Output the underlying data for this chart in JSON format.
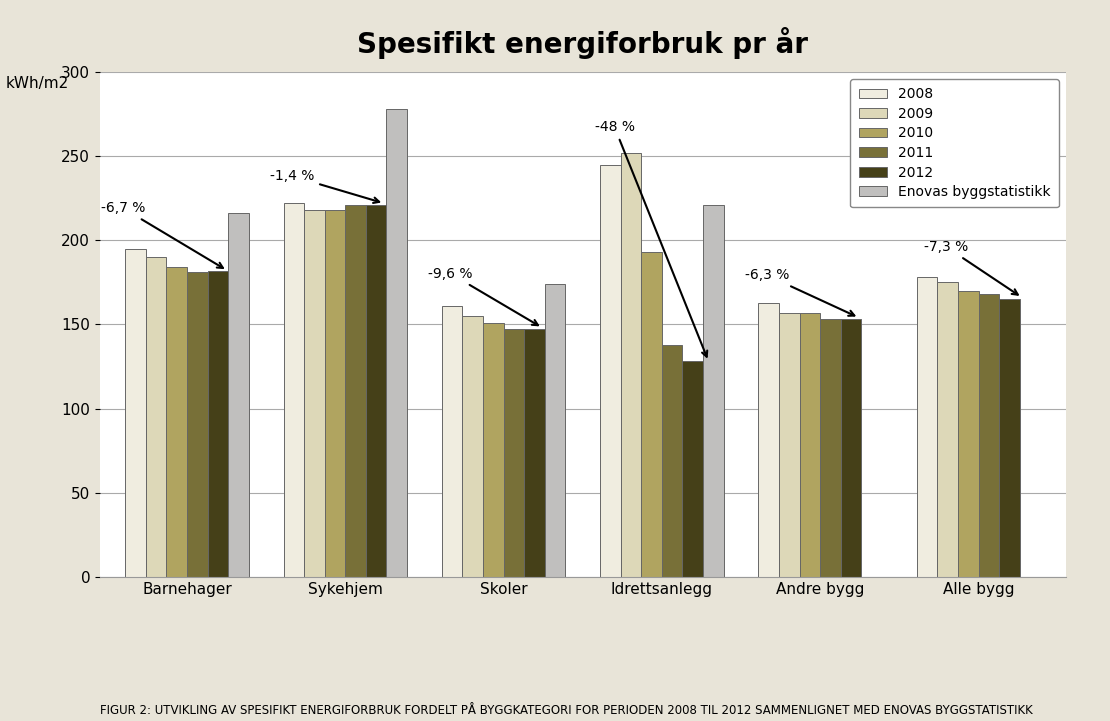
{
  "title": "Spesifikt energiforbruk pr år",
  "ylabel": "kWh/m2",
  "ylim": [
    0,
    300
  ],
  "yticks": [
    0,
    50,
    100,
    150,
    200,
    250,
    300
  ],
  "categories": [
    "Barnehager",
    "Sykehjem",
    "Skoler",
    "Idrettsanlegg",
    "Andre bygg",
    "Alle bygg"
  ],
  "series": {
    "2008": [
      195,
      222,
      161,
      245,
      163,
      178
    ],
    "2009": [
      190,
      218,
      155,
      252,
      157,
      175
    ],
    "2010": [
      184,
      218,
      151,
      193,
      157,
      170
    ],
    "2011": [
      181,
      221,
      147,
      138,
      153,
      168
    ],
    "2012": [
      182,
      221,
      147,
      128,
      153,
      165
    ]
  },
  "enova": [
    216,
    278,
    174,
    221,
    null,
    null
  ],
  "bar_colors": {
    "2008": "#f0ede0",
    "2009": "#ddd8b8",
    "2010": "#b0a460",
    "2011": "#787038",
    "2012": "#454018",
    "enova": "#c0bfbe"
  },
  "legend_labels": [
    "2008",
    "2009",
    "2010",
    "2011",
    "2012",
    "Enovas byggstatistikk"
  ],
  "background_color": "#e8e4d8",
  "plot_background": "#ffffff",
  "caption": "FIGUR 2: UTVIKLING AV SPESIFIKT ENERGIFORBRUK FORDELT PÅ BYGGKATEGORI FOR PERIODEN 2008 TIL 2012 SAMMENLIGNET MED ENOVAS BYGGSTATISTIKK"
}
